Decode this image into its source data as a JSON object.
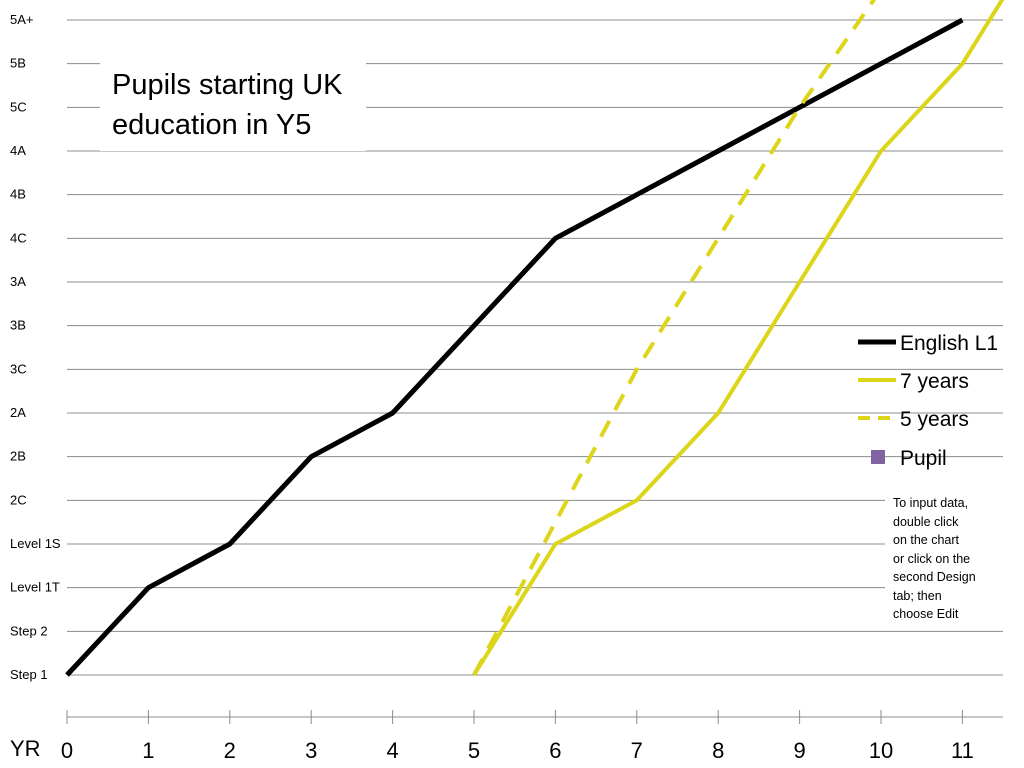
{
  "chart_data": {
    "type": "line",
    "title": [
      "Pupils starting UK",
      "education in Y5"
    ],
    "xlabel": "YR",
    "x_ticks": [
      0,
      1,
      2,
      3,
      4,
      5,
      6,
      7,
      8,
      9,
      10,
      11
    ],
    "xlim": [
      0,
      11.5
    ],
    "y_ticks": [
      "Step 1",
      "Step 2",
      "Level 1T",
      "Level 1S",
      "2C",
      "2B",
      "2A",
      "3C",
      "3B",
      "3A",
      "4C",
      "4B",
      "4A",
      "5C",
      "5B",
      "5A+"
    ],
    "grid": true,
    "legend_position": "right",
    "series": [
      {
        "name": "English L1",
        "color": "#000000",
        "style": "solid",
        "points": [
          [
            0,
            "Step 1"
          ],
          [
            1,
            "Level 1T"
          ],
          [
            2,
            "Level 1S"
          ],
          [
            3,
            "2B"
          ],
          [
            4,
            "2A"
          ],
          [
            5,
            "3B"
          ],
          [
            6,
            "4C"
          ],
          [
            7,
            "4B"
          ],
          [
            8,
            "4A"
          ],
          [
            9,
            "5C"
          ],
          [
            10,
            "5B"
          ],
          [
            11,
            "5A+"
          ]
        ]
      },
      {
        "name": "7 years",
        "color": "#dcd51a",
        "style": "solid",
        "points": [
          [
            5,
            0
          ],
          [
            6,
            3
          ],
          [
            7,
            4
          ],
          [
            8,
            6
          ],
          [
            9,
            9
          ],
          [
            10,
            12
          ],
          [
            11,
            14
          ],
          [
            11.5,
            15.5
          ]
        ]
      },
      {
        "name": "5 years",
        "color": "#dcd51a",
        "style": "dashed",
        "points": [
          [
            5,
            0
          ],
          [
            6,
            3.5
          ],
          [
            7,
            7
          ],
          [
            8,
            10
          ],
          [
            9,
            13
          ],
          [
            10,
            15.7
          ]
        ]
      },
      {
        "name": "Pupil",
        "color": "#8064a2",
        "style": "marker",
        "points": []
      }
    ],
    "annotation": [
      "To input data,",
      "double click",
      "on the chart",
      "or click on the",
      "second Design",
      "tab; then",
      "choose Edit"
    ]
  }
}
